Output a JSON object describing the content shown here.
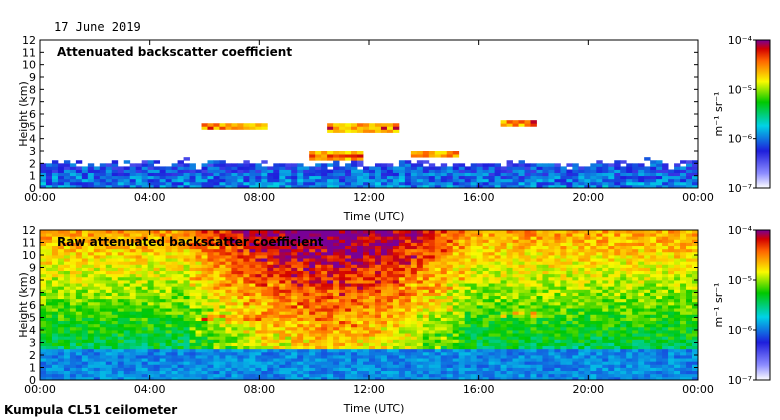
{
  "header": {
    "date": "17 June 2019"
  },
  "footer": {
    "caption": "Kumpula CL51 ceilometer"
  },
  "chart_data": [
    {
      "type": "heatmap",
      "title": "Attenuated backscatter coefficient",
      "xlabel": "Time (UTC)",
      "ylabel": "Height (km)",
      "x_ticks": [
        "00:00",
        "04:00",
        "08:00",
        "12:00",
        "16:00",
        "20:00",
        "00:00"
      ],
      "y_ticks": [
        "0",
        "1",
        "2",
        "3",
        "4",
        "5",
        "6",
        "7",
        "8",
        "9",
        "10",
        "11",
        "12"
      ],
      "xlim_hours": [
        0,
        24
      ],
      "ylim_km": [
        0,
        12
      ],
      "colorbar": {
        "label": "m⁻¹ sr⁻¹",
        "scale": "log",
        "ticks": [
          "10⁻⁷",
          "10⁻⁶",
          "10⁻⁵",
          "10⁻⁴"
        ],
        "range": [
          1e-07,
          0.0001
        ]
      },
      "features": [
        {
          "name": "boundary layer",
          "t_start_h": 0,
          "t_end_h": 24,
          "top_km": 2.0,
          "intensity": "low-mid"
        },
        {
          "name": "cloud layer",
          "t_start_h": 5.8,
          "t_end_h": 8.2,
          "height_km": 5.0,
          "intensity": "high"
        },
        {
          "name": "cloud layer",
          "t_start_h": 10.5,
          "t_end_h": 13.2,
          "height_km": 4.9,
          "intensity": "high"
        },
        {
          "name": "cloud layer",
          "t_start_h": 13.6,
          "t_end_h": 15.3,
          "height_km": 2.8,
          "intensity": "high"
        },
        {
          "name": "cloud layer",
          "t_start_h": 16.8,
          "t_end_h": 18.0,
          "height_km": 5.3,
          "intensity": "high"
        },
        {
          "name": "scattered cloud",
          "t_start_h": 9.8,
          "t_end_h": 11.8,
          "height_km": 2.6,
          "intensity": "high"
        }
      ]
    },
    {
      "type": "heatmap",
      "title": "Raw attenuated backscatter coefficient",
      "xlabel": "Time (UTC)",
      "ylabel": "Height (km)",
      "x_ticks": [
        "00:00",
        "04:00",
        "08:00",
        "12:00",
        "16:00",
        "20:00",
        "00:00"
      ],
      "y_ticks": [
        "0",
        "1",
        "2",
        "3",
        "4",
        "5",
        "6",
        "7",
        "8",
        "9",
        "10",
        "11",
        "12"
      ],
      "xlim_hours": [
        0,
        24
      ],
      "ylim_km": [
        0,
        12
      ],
      "colorbar": {
        "label": "m⁻¹ sr⁻¹",
        "scale": "log",
        "ticks": [
          "10⁻⁷",
          "10⁻⁶",
          "10⁻⁵",
          "10⁻⁴"
        ],
        "range": [
          1e-07,
          0.0001
        ]
      },
      "features": [
        {
          "name": "boundary layer",
          "t_start_h": 0,
          "t_end_h": 24,
          "top_km": 2.5,
          "intensity": "low"
        },
        {
          "name": "noise (daytime)",
          "t_start_h": 5.5,
          "t_end_h": 15.5,
          "height_km": 8.0,
          "intensity": "mid-high"
        },
        {
          "name": "cloud layer",
          "t_start_h": 5.8,
          "t_end_h": 8.0,
          "height_km": 5.0,
          "intensity": "high"
        },
        {
          "name": "cloud layer",
          "t_start_h": 16.8,
          "t_end_h": 18.0,
          "height_km": 5.3,
          "intensity": "mid-high"
        }
      ]
    }
  ]
}
